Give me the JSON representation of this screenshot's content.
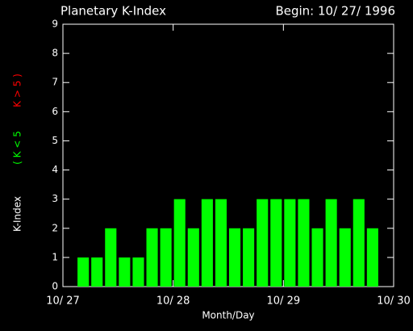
{
  "chart_data": {
    "type": "bar",
    "title": "Planetary K-Index",
    "subtitle": "Begin: 10/ 27/ 1996",
    "xlabel": "Month/Day",
    "ylabel": "K-Index",
    "x": [
      3,
      6,
      9,
      12,
      15,
      18,
      21,
      24,
      27,
      30,
      33,
      36,
      39,
      42,
      45,
      48,
      51,
      54,
      57,
      60,
      63,
      66
    ],
    "series": [
      {
        "name": "( K < 5",
        "color": "#00ff00",
        "values": [
          1,
          1,
          2,
          1,
          1,
          2,
          2,
          3,
          2,
          3,
          3,
          2,
          2,
          3,
          3,
          3,
          3,
          2,
          3,
          2,
          3,
          2
        ]
      },
      {
        "name": "K > 5 )",
        "color": "#ff0000",
        "values": [
          null,
          null,
          null,
          null,
          null,
          null,
          null,
          null,
          null,
          null,
          null,
          null,
          null,
          null,
          null,
          null,
          null,
          null,
          null,
          null,
          null,
          null
        ]
      }
    ],
    "xlim": [
      0,
      72
    ],
    "xticks": [
      {
        "value": 0,
        "label": "10/ 27"
      },
      {
        "value": 24,
        "label": "10/ 28"
      },
      {
        "value": 48,
        "label": "10/ 29"
      },
      {
        "value": 72,
        "label": "10/ 30"
      }
    ],
    "ylim": [
      0,
      9
    ],
    "yticks": [
      0,
      1,
      2,
      3,
      4,
      5,
      6,
      7,
      8,
      9
    ]
  }
}
